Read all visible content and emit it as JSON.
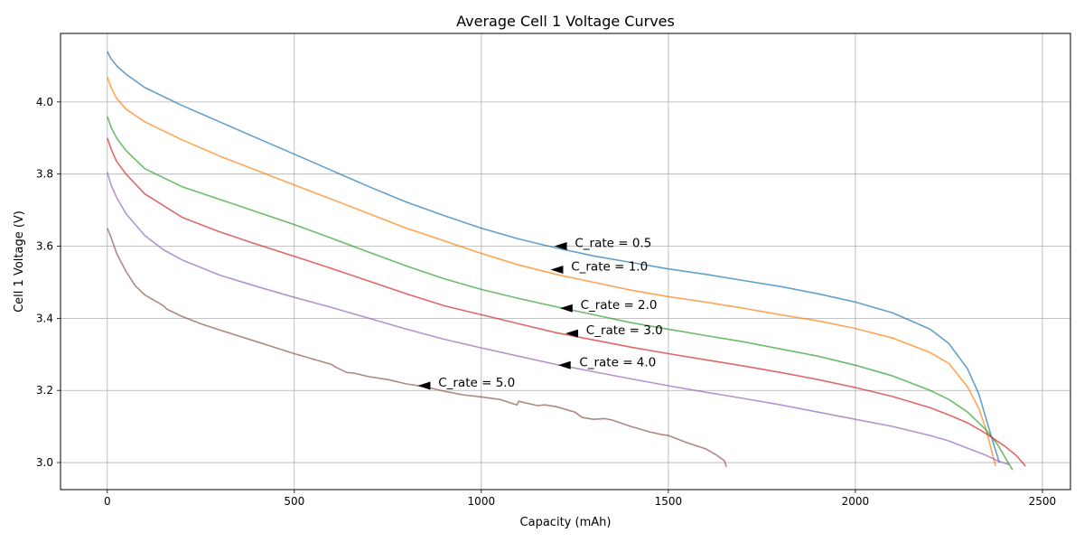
{
  "chart_data": {
    "type": "line",
    "title": "Average Cell 1 Voltage Curves",
    "xlabel": "Capacity (mAh)",
    "ylabel": "Cell 1 Voltage (V)",
    "xlim": [
      -125,
      2575
    ],
    "ylim": [
      2.925,
      4.19
    ],
    "xticks": [
      0,
      500,
      1000,
      1500,
      2000,
      2500
    ],
    "yticks": [
      3.0,
      3.2,
      3.4,
      3.6,
      3.8,
      4.0
    ],
    "xtick_labels": [
      "0",
      "500",
      "1000",
      "1500",
      "2000",
      "2500"
    ],
    "ytick_labels": [
      "3.0",
      "3.2",
      "3.4",
      "3.6",
      "3.8",
      "4.0"
    ],
    "grid": true,
    "colors": [
      "#1f77b4",
      "#ff7f0e",
      "#2ca02c",
      "#d62728",
      "#9467bd",
      "#8c564b"
    ],
    "series": [
      {
        "x": [
          0,
          10,
          25,
          50,
          100,
          200,
          300,
          400,
          500,
          600,
          700,
          800,
          900,
          1000,
          1100,
          1200,
          1300,
          1400,
          1500,
          1600,
          1700,
          1800,
          1900,
          2000,
          2100,
          2200,
          2250,
          2300,
          2330,
          2350,
          2370,
          2385
        ],
        "y": [
          4.14,
          4.12,
          4.1,
          4.077,
          4.04,
          3.99,
          3.945,
          3.9,
          3.855,
          3.81,
          3.765,
          3.722,
          3.685,
          3.65,
          3.62,
          3.595,
          3.573,
          3.555,
          3.537,
          3.522,
          3.505,
          3.488,
          3.468,
          3.445,
          3.415,
          3.37,
          3.33,
          3.26,
          3.19,
          3.12,
          3.05,
          3.0
        ]
      },
      {
        "x": [
          0,
          10,
          25,
          50,
          100,
          200,
          300,
          400,
          500,
          600,
          700,
          800,
          900,
          1000,
          1100,
          1200,
          1300,
          1400,
          1500,
          1600,
          1700,
          1800,
          1900,
          2000,
          2100,
          2200,
          2250,
          2300,
          2330,
          2350,
          2365,
          2375
        ],
        "y": [
          4.07,
          4.04,
          4.01,
          3.98,
          3.945,
          3.895,
          3.85,
          3.81,
          3.77,
          3.73,
          3.69,
          3.65,
          3.615,
          3.58,
          3.548,
          3.522,
          3.5,
          3.478,
          3.46,
          3.445,
          3.428,
          3.41,
          3.393,
          3.372,
          3.345,
          3.305,
          3.275,
          3.21,
          3.15,
          3.09,
          3.03,
          2.99
        ]
      },
      {
        "x": [
          0,
          10,
          25,
          50,
          100,
          200,
          300,
          400,
          500,
          600,
          700,
          800,
          900,
          1000,
          1100,
          1200,
          1300,
          1400,
          1500,
          1600,
          1700,
          1800,
          1900,
          2000,
          2100,
          2200,
          2250,
          2300,
          2350,
          2380,
          2400,
          2420
        ],
        "y": [
          3.96,
          3.93,
          3.9,
          3.865,
          3.815,
          3.765,
          3.73,
          3.695,
          3.66,
          3.622,
          3.583,
          3.545,
          3.51,
          3.48,
          3.455,
          3.432,
          3.41,
          3.388,
          3.37,
          3.352,
          3.335,
          3.315,
          3.295,
          3.27,
          3.24,
          3.2,
          3.175,
          3.14,
          3.09,
          3.05,
          3.015,
          2.98
        ]
      },
      {
        "x": [
          0,
          10,
          25,
          50,
          100,
          200,
          300,
          400,
          500,
          600,
          700,
          800,
          900,
          1000,
          1100,
          1200,
          1300,
          1400,
          1500,
          1600,
          1700,
          1800,
          1900,
          2000,
          2100,
          2200,
          2250,
          2300,
          2350,
          2400,
          2430,
          2455
        ],
        "y": [
          3.9,
          3.87,
          3.835,
          3.8,
          3.745,
          3.68,
          3.64,
          3.605,
          3.572,
          3.538,
          3.503,
          3.468,
          3.435,
          3.41,
          3.385,
          3.36,
          3.34,
          3.32,
          3.302,
          3.285,
          3.268,
          3.25,
          3.23,
          3.208,
          3.183,
          3.152,
          3.132,
          3.11,
          3.08,
          3.045,
          3.02,
          2.99
        ]
      },
      {
        "x": [
          0,
          10,
          25,
          50,
          100,
          150,
          200,
          300,
          400,
          500,
          600,
          700,
          800,
          900,
          1000,
          1100,
          1200,
          1300,
          1400,
          1500,
          1600,
          1700,
          1800,
          1900,
          2000,
          2100,
          2200,
          2250,
          2300,
          2350,
          2380,
          2410
        ],
        "y": [
          3.805,
          3.77,
          3.735,
          3.69,
          3.63,
          3.59,
          3.562,
          3.52,
          3.488,
          3.458,
          3.43,
          3.4,
          3.37,
          3.342,
          3.318,
          3.295,
          3.272,
          3.252,
          3.232,
          3.213,
          3.195,
          3.178,
          3.16,
          3.14,
          3.12,
          3.1,
          3.075,
          3.06,
          3.04,
          3.02,
          3.005,
          2.995
        ]
      },
      {
        "x": [
          0,
          10,
          25,
          50,
          75,
          100,
          150,
          160,
          200,
          250,
          300,
          400,
          500,
          600,
          610,
          630,
          640,
          660,
          700,
          750,
          800,
          850,
          900,
          950,
          1000,
          1050,
          1095,
          1100,
          1150,
          1170,
          1200,
          1250,
          1270,
          1300,
          1330,
          1350,
          1400,
          1450,
          1480,
          1500,
          1550,
          1600,
          1630,
          1650,
          1655
        ],
        "y": [
          3.65,
          3.625,
          3.58,
          3.53,
          3.49,
          3.465,
          3.435,
          3.425,
          3.405,
          3.385,
          3.368,
          3.335,
          3.302,
          3.272,
          3.265,
          3.255,
          3.25,
          3.248,
          3.238,
          3.23,
          3.218,
          3.21,
          3.198,
          3.188,
          3.182,
          3.175,
          3.16,
          3.17,
          3.158,
          3.16,
          3.155,
          3.14,
          3.125,
          3.12,
          3.122,
          3.118,
          3.1,
          3.085,
          3.078,
          3.075,
          3.055,
          3.038,
          3.02,
          3.005,
          2.988
        ]
      }
    ],
    "annotations": [
      {
        "text": "C_rate = 0.5",
        "x": 1195,
        "y": 3.6,
        "text_x": 1250,
        "text_y": 3.6
      },
      {
        "text": "C_rate = 1.0",
        "x": 1185,
        "y": 3.535,
        "text_x": 1240,
        "text_y": 3.535
      },
      {
        "text": "C_rate = 2.0",
        "x": 1210,
        "y": 3.428,
        "text_x": 1265,
        "text_y": 3.428
      },
      {
        "text": "C_rate = 3.0",
        "x": 1225,
        "y": 3.358,
        "text_x": 1280,
        "text_y": 3.358
      },
      {
        "text": "C_rate = 4.0",
        "x": 1205,
        "y": 3.27,
        "text_x": 1262,
        "text_y": 3.27
      },
      {
        "text": "C_rate = 5.0",
        "x": 830,
        "y": 3.213,
        "text_x": 885,
        "text_y": 3.213
      }
    ]
  }
}
